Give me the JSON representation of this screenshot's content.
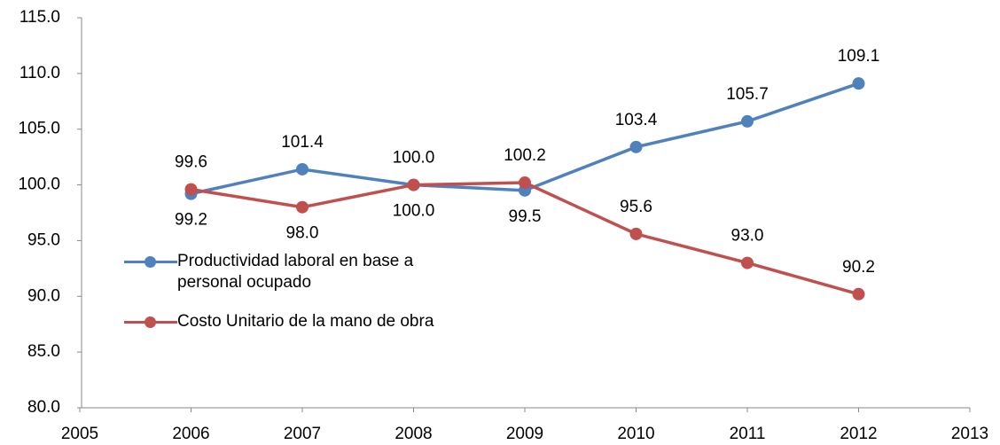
{
  "chart_data": {
    "type": "line",
    "x": [
      2006,
      2007,
      2008,
      2009,
      2010,
      2011,
      2012
    ],
    "xlim": [
      2005,
      2013
    ],
    "xticks": [
      2005,
      2006,
      2007,
      2008,
      2009,
      2010,
      2011,
      2012,
      2013
    ],
    "ylim": [
      80,
      115
    ],
    "yticks": [
      {
        "value": 80,
        "label": "80.0"
      },
      {
        "value": 85,
        "label": "85.0"
      },
      {
        "value": 90,
        "label": "90.0"
      },
      {
        "value": 95,
        "label": "95.0"
      },
      {
        "value": 100,
        "label": "100.0"
      },
      {
        "value": 105,
        "label": "105.0"
      },
      {
        "value": 110,
        "label": "110.0"
      },
      {
        "value": 115,
        "label": "115.0"
      }
    ],
    "grid": false,
    "legend": "left",
    "series": [
      {
        "name": "Productividad laboral en base a personal ocupado",
        "color": "#4f81bd",
        "values": [
          99.2,
          101.4,
          100.0,
          99.5,
          103.4,
          105.7,
          109.1
        ],
        "value_labels": [
          "99.2",
          "101.4",
          "100.0",
          "99.5",
          "103.4",
          "105.7",
          "109.1"
        ]
      },
      {
        "name": "Costo Unitario de la mano de obra",
        "color": "#c0504d",
        "values": [
          99.6,
          98.0,
          100.0,
          100.2,
          95.6,
          93.0,
          90.2
        ],
        "value_labels": [
          "99.6",
          "98.0",
          "100.0",
          "100.2",
          "95.6",
          "93.0",
          "90.2"
        ]
      }
    ]
  }
}
